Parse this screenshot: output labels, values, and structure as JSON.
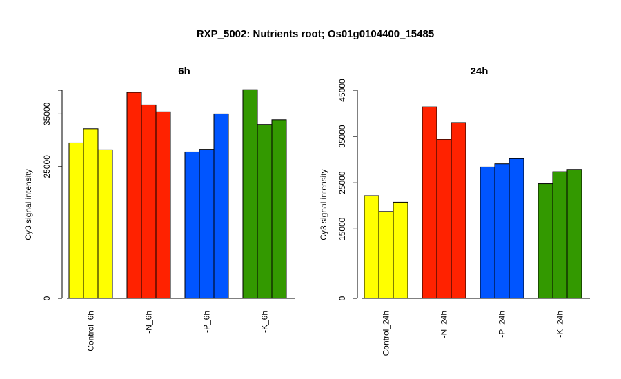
{
  "title": "RXP_5002: Nutrients root; Os01g0104400_15485",
  "colors": {
    "yellow": "#ffff00",
    "red": "#ff2200",
    "blue": "#0055ff",
    "green": "#339900",
    "stroke": "#000000"
  },
  "chart_data": [
    {
      "type": "bar",
      "title": "6h",
      "ylabel": "Cy3 signal intensity",
      "ylim": [
        0,
        39500
      ],
      "yticks": [
        0,
        25000,
        35000
      ],
      "ytick_labels": [
        "0",
        "25000",
        "35000"
      ],
      "categories": [
        "Control_6h",
        "-N_6h",
        "-P_6h",
        "-K_6h"
      ],
      "group_colors": [
        "#ffff00",
        "#ff2200",
        "#0055ff",
        "#339900"
      ],
      "groups": [
        {
          "name": "Control_6h",
          "values": [
            29500,
            32200,
            28200
          ]
        },
        {
          "name": "-N_6h",
          "values": [
            39100,
            36700,
            35400
          ]
        },
        {
          "name": "-P_6h",
          "values": [
            27800,
            28300,
            35000
          ]
        },
        {
          "name": "-K_6h",
          "values": [
            39600,
            33000,
            33900
          ]
        }
      ]
    },
    {
      "type": "bar",
      "title": "24h",
      "ylabel": "Cy3 signal intensity",
      "ylim": [
        0,
        45000
      ],
      "yticks": [
        0,
        15000,
        25000,
        35000,
        45000
      ],
      "ytick_labels": [
        "0",
        "15000",
        "25000",
        "35000",
        "45000"
      ],
      "categories": [
        "Control_24h",
        "-N_24h",
        "-P_24h",
        "-K_24h"
      ],
      "group_colors": [
        "#ffff00",
        "#ff2200",
        "#0055ff",
        "#339900"
      ],
      "groups": [
        {
          "name": "Control_24h",
          "values": [
            22200,
            18800,
            20800
          ]
        },
        {
          "name": "-N_24h",
          "values": [
            41400,
            34400,
            38000
          ]
        },
        {
          "name": "-P_24h",
          "values": [
            28400,
            29100,
            30200
          ]
        },
        {
          "name": "-K_24h",
          "values": [
            24800,
            27400,
            27900
          ]
        }
      ]
    }
  ]
}
